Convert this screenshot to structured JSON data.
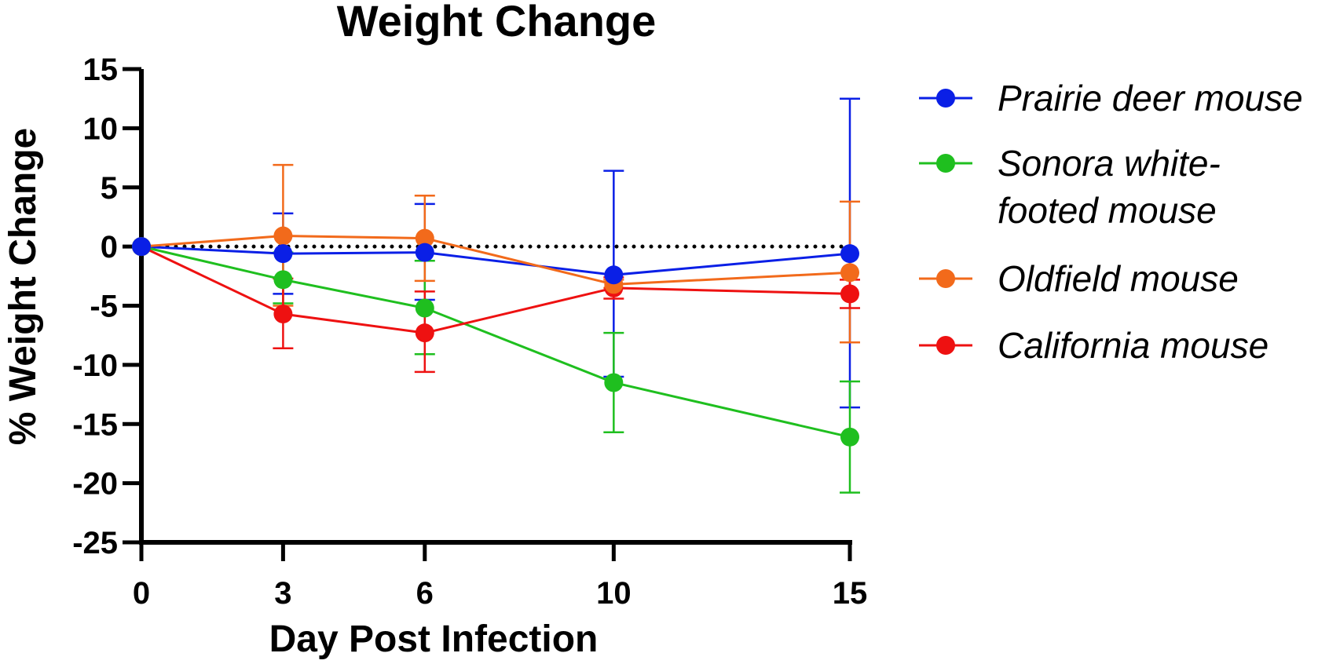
{
  "chart_data": {
    "type": "line",
    "title": "Weight Change",
    "xlabel": "Day Post Infection",
    "ylabel": "% Weight Change",
    "x": [
      0,
      3,
      6,
      10,
      15
    ],
    "x_tick_labels": [
      "0",
      "3",
      "6",
      "10",
      "15"
    ],
    "ylim": [
      -25,
      15
    ],
    "y_ticks": [
      15,
      10,
      5,
      0,
      -5,
      -10,
      -15,
      -20,
      -25
    ],
    "y_tick_labels": [
      "15",
      "10",
      "5",
      "0",
      "-5",
      "-10",
      "-15",
      "-20",
      "-25"
    ],
    "reference_line": {
      "y": 0,
      "style": "dotted"
    },
    "legend_position": "right",
    "series": [
      {
        "name": "Prairie deer mouse",
        "legend_lines": [
          "Prairie deer mouse"
        ],
        "color": "#0a1fe6",
        "values": [
          0,
          -0.6,
          -0.5,
          -2.4,
          -0.6
        ],
        "err_upper": [
          null,
          2.8,
          3.6,
          6.4,
          12.5
        ],
        "err_lower": [
          null,
          -4.0,
          -4.5,
          -11.0,
          -13.6
        ]
      },
      {
        "name": "Sonora white-footed mouse",
        "legend_lines": [
          "Sonora white-",
          "footed mouse"
        ],
        "color": "#1fbf1f",
        "values": [
          0,
          -2.8,
          -5.2,
          -11.5,
          -16.1
        ],
        "err_upper": [
          null,
          -0.5,
          -1.2,
          -7.3,
          -11.4
        ],
        "err_lower": [
          null,
          -4.8,
          -9.1,
          -15.7,
          -20.8
        ]
      },
      {
        "name": "Oldfield mouse",
        "legend_lines": [
          "Oldfield mouse"
        ],
        "color": "#f26a1b",
        "values": [
          0,
          0.9,
          0.7,
          -3.2,
          -2.2
        ],
        "err_upper": [
          null,
          6.9,
          4.3,
          -2.8,
          3.8
        ],
        "err_lower": [
          null,
          -5.0,
          -2.9,
          -3.5,
          -8.1
        ]
      },
      {
        "name": "California mouse",
        "legend_lines": [
          "California mouse"
        ],
        "color": "#ee1111",
        "values": [
          0,
          -5.7,
          -7.3,
          -3.5,
          -4.0
        ],
        "err_upper": [
          null,
          -2.7,
          -3.8,
          -2.6,
          -2.8
        ],
        "err_lower": [
          null,
          -8.6,
          -10.6,
          -4.4,
          -5.2
        ]
      }
    ]
  }
}
